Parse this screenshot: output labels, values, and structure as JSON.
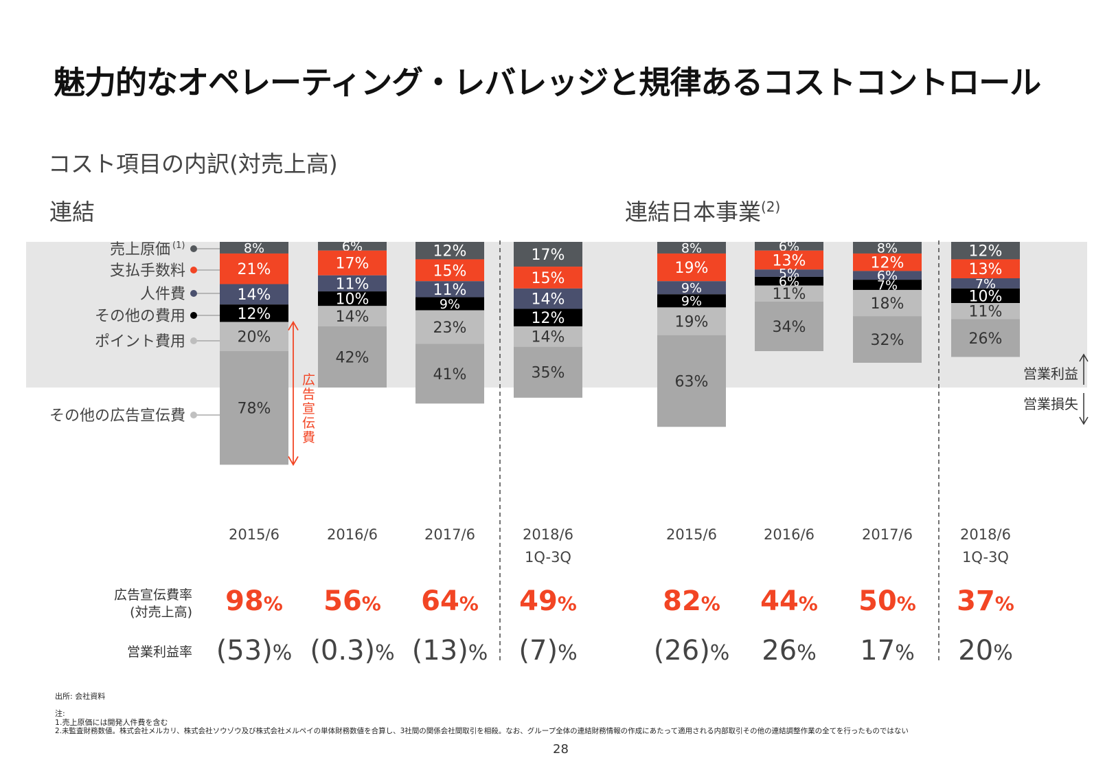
{
  "title": "魅力的なオペレーティング・レバレッジと規律あるコストコントロール",
  "subtitle": "コスト項目の内訳(対売上高)",
  "sections": {
    "left": "連結",
    "right": "連結日本事業",
    "right_note": "(2)"
  },
  "legend": {
    "cogs": "売上原価",
    "cogs_note": "(1)",
    "fees": "支払手数料",
    "personnel": "人件費",
    "other_costs": "その他の費用",
    "points": "ポイント費用",
    "other_ads": "その他の広告宣伝費",
    "ads_bracket": "広告宣伝費"
  },
  "profit_arrows": {
    "profit": "営業利益",
    "loss": "営業損失"
  },
  "row_labels": {
    "ad_ratio": "広告宣伝費率",
    "ad_ratio_sub": "(対売上高)",
    "op_margin": "営業利益率"
  },
  "colors": {
    "cogs": "#54585c",
    "fees": "#f24524",
    "personnel": "#4a506e",
    "other_costs": "#000000",
    "points": "#bdbdbd",
    "other_ads": "#a8a8a8",
    "band": "#e6e6e6",
    "accent": "#f24524"
  },
  "chart_data": {
    "type": "bar",
    "stacked": true,
    "title": "コスト項目の内訳(対売上高)",
    "segment_order": [
      "売上原価",
      "支払手数料",
      "人件費",
      "その他の費用",
      "ポイント費用",
      "その他の広告宣伝費"
    ],
    "groups": [
      {
        "name": "連結",
        "bars": [
          {
            "category": "2015/6",
            "values": [
              8,
              21,
              14,
              12,
              20,
              78
            ],
            "ad_ratio": "98",
            "op_margin": "(53)"
          },
          {
            "category": "2016/6",
            "values": [
              6,
              17,
              11,
              10,
              14,
              42
            ],
            "ad_ratio": "56",
            "op_margin": "(0.3)"
          },
          {
            "category": "2017/6",
            "values": [
              12,
              15,
              11,
              9,
              23,
              41
            ],
            "ad_ratio": "64",
            "op_margin": "(13)"
          },
          {
            "category": "2018/6",
            "category2": "1Q-3Q",
            "values": [
              17,
              15,
              14,
              12,
              14,
              35
            ],
            "ad_ratio": "49",
            "op_margin": "(7)"
          }
        ]
      },
      {
        "name": "連結日本事業",
        "bars": [
          {
            "category": "2015/6",
            "values": [
              8,
              19,
              9,
              9,
              19,
              63
            ],
            "ad_ratio": "82",
            "op_margin": "(26)"
          },
          {
            "category": "2016/6",
            "values": [
              6,
              13,
              5,
              6,
              11,
              34
            ],
            "ad_ratio": "44",
            "op_margin": "26"
          },
          {
            "category": "2017/6",
            "values": [
              8,
              12,
              6,
              7,
              18,
              32
            ],
            "ad_ratio": "50",
            "op_margin": "17"
          },
          {
            "category": "2018/6",
            "category2": "1Q-3Q",
            "values": [
              12,
              13,
              7,
              10,
              11,
              26
            ],
            "ad_ratio": "37",
            "op_margin": "20"
          }
        ]
      }
    ],
    "value_suffix": "%",
    "reference_line": 100,
    "legend_position": "left"
  },
  "footnotes": {
    "source": "出所: 会社資料",
    "note_title": "注:",
    "note1": "1.売上原価には開発人件費を含む",
    "note2": "2.未監査財務数値。株式会社メルカリ、株式会社ソウゾウ及び株式会社メルペイの単体財務数値を合算し、3社間の関係会社間取引を相殺。なお、グループ全体の連結財務情報の作成にあたって適用される内部取引その他の連結調整作業の全てを行ったものではない"
  },
  "page_number": "28"
}
